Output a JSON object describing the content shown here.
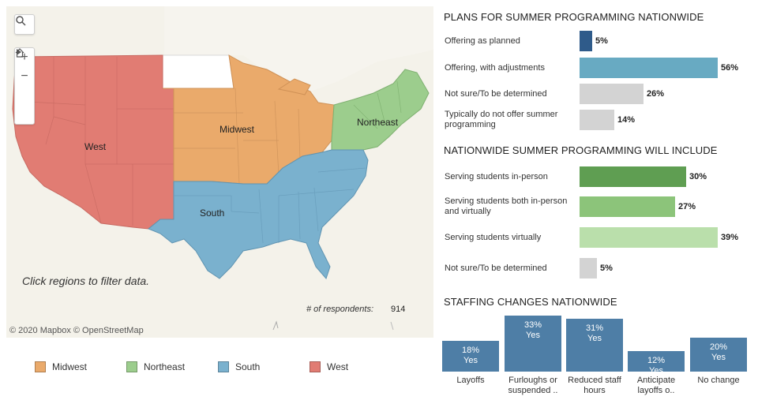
{
  "map": {
    "hint": "Click regions to filter data.",
    "respondents_label": "# of respondents:",
    "respondents_value": "914",
    "attribution": "© 2020 Mapbox  © OpenStreetMap",
    "regions": {
      "west": "West",
      "midwest": "Midwest",
      "south": "South",
      "northeast": "Northeast"
    },
    "colors": {
      "West": "#e17c73",
      "Midwest": "#eaaa6b",
      "South": "#7ab1ce",
      "Northeast": "#9ccd8d"
    }
  },
  "legend": [
    {
      "label": "Midwest",
      "color": "#eaaa6b"
    },
    {
      "label": "Northeast",
      "color": "#9ccd8d"
    },
    {
      "label": "South",
      "color": "#7ab1ce"
    },
    {
      "label": "West",
      "color": "#e17c73"
    }
  ],
  "plans": {
    "title": "PLANS FOR SUMMER PROGRAMMING NATIONWIDE",
    "items": [
      {
        "label": "Offering as planned",
        "pct": 5,
        "pct_label": "5%",
        "color": "#2f5b8a"
      },
      {
        "label": "Offering, with adjustments",
        "pct": 56,
        "pct_label": "56%",
        "color": "#68aac2"
      },
      {
        "label": "Not sure/To be determined",
        "pct": 26,
        "pct_label": "26%",
        "color": "#d3d3d3"
      },
      {
        "label": "Typically do not offer summer programming",
        "pct": 14,
        "pct_label": "14%",
        "color": "#d3d3d3"
      }
    ]
  },
  "include": {
    "title": "NATIONWIDE SUMMER PROGRAMMING WILL INCLUDE",
    "items": [
      {
        "label": "Serving students in-person",
        "pct": 30,
        "pct_label": "30%",
        "color": "#5f9e52"
      },
      {
        "label": "Serving students both in-person and virtually",
        "pct": 27,
        "pct_label": "27%",
        "color": "#8cc47a"
      },
      {
        "label": "Serving students virtually",
        "pct": 39,
        "pct_label": "39%",
        "color": "#badfab"
      },
      {
        "label": "Not sure/To be determined",
        "pct": 5,
        "pct_label": "5%",
        "color": "#d3d3d3"
      }
    ]
  },
  "staffing": {
    "title": "STAFFING CHANGES NATIONWIDE",
    "items": [
      {
        "label": "Layoffs",
        "pct": 18,
        "pct_label": "18%",
        "value_label": "Yes"
      },
      {
        "label": "Furloughs or suspended ..",
        "pct": 33,
        "pct_label": "33%",
        "value_label": "Yes"
      },
      {
        "label": "Reduced staff hours",
        "pct": 31,
        "pct_label": "31%",
        "value_label": "Yes"
      },
      {
        "label": "Anticipate layoffs o..",
        "pct": 12,
        "pct_label": "12%",
        "value_label": "Yes"
      },
      {
        "label": "No change",
        "pct": 20,
        "pct_label": "20%",
        "value_label": "Yes"
      }
    ]
  }
}
